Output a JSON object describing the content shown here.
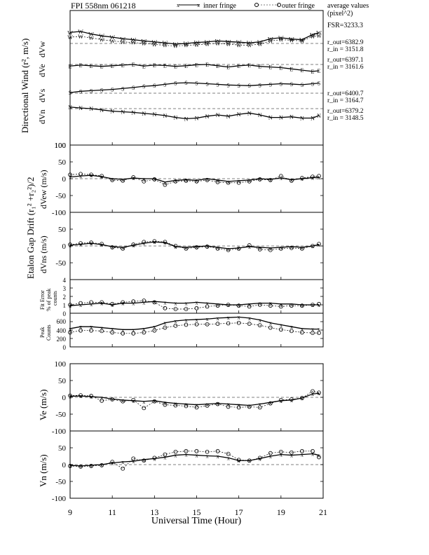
{
  "header": {
    "title": "FPI 558nm 061218",
    "legend_inner": "inner fringe",
    "legend_outer": "outer fringe",
    "avg_line1": "average values",
    "avg_line2": "(pixel^2)",
    "fsr": "FSR=3233.3"
  },
  "ring_labels": [
    [
      "r_out=6382.9",
      "r_in = 3151.8"
    ],
    [
      "r_out=6397.1",
      "r_in = 3161.6"
    ],
    [
      "r_out=6400.7",
      "r_in = 3164.7"
    ],
    [
      "r_out=6379.2",
      "r_in = 3148.5"
    ]
  ],
  "xaxis": {
    "label": "Universal Time (Hour)",
    "ticks": [
      "9",
      "11",
      "13",
      "15",
      "17",
      "19",
      "21"
    ]
  },
  "panel_labels": {
    "directional": "Directional Wind (r², m/s)",
    "dVw": "dVw",
    "dVe": "dVe",
    "dVs": "dVs",
    "dVn": "dVn",
    "drift": "Etalon Gap Drift (r₁² +r₂²)/2",
    "dVew": "dVew (m/s)",
    "dVns": "dVns (m/s)",
    "fit1": "Fit Error",
    "fit2": "% of peak",
    "fit3": "counts",
    "peak1": "Peak",
    "peak2": "Counts",
    "ve": "Ve (m/s)",
    "vn": "Vn (m/s)"
  },
  "tick_labels": {
    "dir": [
      "100"
    ],
    "drift": [
      "100",
      "50",
      "0",
      "-50",
      "-100"
    ],
    "fit": [
      "4",
      "3",
      "2",
      "1",
      "0"
    ],
    "peak": [
      "600",
      "400",
      "200",
      "0"
    ],
    "wind": [
      "100",
      "50",
      "0",
      "-50",
      "-100"
    ]
  },
  "chart_data": [
    {
      "type": "line",
      "name": "Directional wind (Wv, Ev, Sv, Nv)",
      "xlim": [
        9,
        21
      ],
      "series": [
        {
          "name": "W inner",
          "x": [
            9,
            9.5,
            10,
            10.5,
            11,
            11.5,
            12,
            12.5,
            13,
            13.5,
            14,
            14.5,
            15,
            15.5,
            16,
            16.5,
            17,
            17.5,
            18,
            18.5,
            19,
            19.5,
            20,
            20.5,
            20.8
          ],
          "y": [
            20,
            22,
            18,
            12,
            8,
            5,
            3,
            0,
            -3,
            -6,
            -8,
            -6,
            -4,
            -2,
            0,
            -2,
            -5,
            -6,
            -2,
            8,
            12,
            10,
            8,
            22,
            25
          ]
        },
        {
          "name": "W outer",
          "x": [
            9,
            9.5,
            10,
            10.5,
            11,
            11.5,
            12,
            12.5,
            13,
            13.5,
            14,
            14.5,
            15,
            15.5,
            16,
            16.5,
            17,
            17.5,
            18,
            18.5,
            19,
            19.5,
            20,
            20.5,
            20.8
          ],
          "y": [
            35,
            38,
            30,
            24,
            20,
            15,
            12,
            8,
            5,
            2,
            -2,
            0,
            3,
            5,
            8,
            6,
            4,
            2,
            5,
            15,
            18,
            14,
            12,
            28,
            34
          ]
        },
        {
          "name": "E inner",
          "x": [
            9,
            9.5,
            10,
            10.5,
            11,
            11.5,
            12,
            12.5,
            13,
            13.5,
            14,
            14.5,
            15,
            15.5,
            16,
            16.5,
            17,
            17.5,
            18,
            18.5,
            19,
            19.5,
            20,
            20.5,
            20.8
          ],
          "y": [
            -5,
            -2,
            -4,
            -6,
            -4,
            -2,
            0,
            -5,
            -2,
            -3,
            -6,
            -4,
            -1,
            0,
            -4,
            -8,
            -4,
            -2,
            -6,
            -8,
            -10,
            -14,
            -18,
            -22,
            -20
          ]
        },
        {
          "name": "S",
          "x": [
            9,
            9.5,
            10,
            10.5,
            11,
            11.5,
            12,
            12.5,
            13,
            13.5,
            14,
            14.5,
            15,
            15.5,
            16,
            16.5,
            17,
            17.5,
            18,
            18.5,
            19,
            19.5,
            20,
            20.5,
            20.8
          ],
          "y": [
            2,
            6,
            8,
            10,
            12,
            15,
            18,
            22,
            24,
            28,
            32,
            33,
            32,
            30,
            28,
            26,
            25,
            24,
            26,
            28,
            30,
            29,
            27,
            30,
            32
          ]
        },
        {
          "name": "N",
          "x": [
            9,
            9.5,
            10,
            10.5,
            11,
            11.5,
            12,
            12.5,
            13,
            13.5,
            14,
            14.5,
            15,
            15.5,
            16,
            16.5,
            17,
            17.5,
            18,
            18.5,
            19,
            19.5,
            20,
            20.5,
            20.8
          ],
          "y": [
            5,
            2,
            0,
            -4,
            -8,
            -10,
            -12,
            -15,
            -18,
            -22,
            -28,
            -32,
            -30,
            -24,
            -20,
            -24,
            -18,
            -14,
            -20,
            -28,
            -28,
            -26,
            -30,
            -30,
            -22
          ]
        }
      ]
    },
    {
      "type": "line",
      "name": "dVew",
      "xlim": [
        9,
        21
      ],
      "ylim": [
        -100,
        100
      ],
      "series": [
        {
          "name": "inner fringe",
          "x": [
            9,
            9.5,
            10,
            10.5,
            11,
            11.5,
            12,
            12.5,
            13,
            13.5,
            14,
            14.5,
            15,
            15.5,
            16,
            16.5,
            17,
            17.5,
            18,
            18.5,
            19,
            19.5,
            20,
            20.5,
            20.8
          ],
          "y": [
            5,
            8,
            10,
            6,
            0,
            -2,
            2,
            0,
            0,
            -10,
            -5,
            -3,
            -5,
            0,
            -4,
            -8,
            -6,
            -4,
            0,
            -2,
            2,
            -3,
            0,
            3,
            4
          ]
        },
        {
          "name": "outer fringe",
          "x": [
            9,
            9.5,
            10,
            10.5,
            11,
            11.5,
            12,
            12.5,
            13,
            13.5,
            14,
            14.5,
            15,
            15.5,
            16,
            16.5,
            17,
            17.5,
            18,
            18.5,
            19,
            19.5,
            20,
            20.5,
            20.8
          ],
          "y": [
            12,
            14,
            12,
            8,
            -4,
            -6,
            4,
            -8,
            -2,
            -18,
            -8,
            -6,
            -8,
            -4,
            -10,
            -12,
            -12,
            -8,
            -2,
            -4,
            8,
            -6,
            2,
            6,
            8
          ]
        }
      ]
    },
    {
      "type": "line",
      "name": "dVns",
      "xlim": [
        9,
        21
      ],
      "ylim": [
        -100,
        100
      ],
      "series": [
        {
          "name": "inner fringe",
          "x": [
            9,
            9.5,
            10,
            10.5,
            11,
            11.5,
            12,
            12.5,
            13,
            13.5,
            14,
            14.5,
            15,
            15.5,
            16,
            16.5,
            17,
            17.5,
            18,
            18.5,
            19,
            19.5,
            20,
            20.5,
            20.8
          ],
          "y": [
            2,
            5,
            8,
            4,
            -2,
            -4,
            2,
            8,
            12,
            10,
            -2,
            -4,
            -2,
            0,
            -4,
            -8,
            -6,
            -2,
            -4,
            -6,
            -4,
            -2,
            -4,
            0,
            4
          ]
        },
        {
          "name": "outer fringe",
          "x": [
            9,
            9.5,
            10,
            10.5,
            11,
            11.5,
            12,
            12.5,
            13,
            13.5,
            14,
            14.5,
            15,
            15.5,
            16,
            16.5,
            17,
            17.5,
            18,
            18.5,
            19,
            19.5,
            20,
            20.5,
            20.8
          ],
          "y": [
            4,
            8,
            10,
            6,
            -4,
            -8,
            4,
            12,
            14,
            12,
            0,
            -8,
            -4,
            -2,
            -8,
            -12,
            -8,
            2,
            -10,
            -12,
            -8,
            -6,
            -8,
            0,
            6
          ]
        }
      ]
    },
    {
      "type": "line",
      "name": "Fit Error % of peak counts",
      "xlim": [
        9,
        21
      ],
      "ylim": [
        0,
        4
      ],
      "series": [
        {
          "name": "inner fringe",
          "x": [
            9,
            9.5,
            10,
            10.5,
            11,
            11.5,
            12,
            12.5,
            13,
            13.5,
            14,
            14.5,
            15,
            15.5,
            16,
            16.5,
            17,
            17.5,
            18,
            18.5,
            19,
            19.5,
            20,
            20.5,
            20.8
          ],
          "y": [
            0.9,
            1.0,
            1.1,
            1.2,
            1.0,
            1.2,
            1.2,
            1.3,
            1.4,
            1.3,
            1.2,
            1.2,
            1.3,
            1.2,
            1.1,
            1.0,
            1.0,
            1.1,
            1.2,
            1.2,
            1.1,
            1.1,
            1.0,
            1.0,
            1.0
          ]
        },
        {
          "name": "outer fringe",
          "x": [
            9,
            9.5,
            10,
            10.5,
            11,
            11.5,
            12,
            12.5,
            13,
            13.5,
            14,
            14.5,
            15,
            15.5,
            16,
            16.5,
            17,
            17.5,
            18,
            18.5,
            19,
            19.5,
            20,
            20.5,
            20.8
          ],
          "y": [
            1.0,
            1.2,
            1.3,
            1.3,
            1.1,
            1.3,
            1.4,
            1.5,
            1.3,
            0.6,
            0.5,
            0.5,
            0.6,
            0.8,
            0.9,
            1.0,
            0.9,
            0.8,
            1.0,
            0.9,
            0.8,
            0.9,
            0.9,
            1.0,
            1.1
          ]
        }
      ]
    },
    {
      "type": "line",
      "name": "Peak Counts",
      "xlim": [
        9,
        21
      ],
      "ylim": [
        0,
        700
      ],
      "series": [
        {
          "name": "inner fringe",
          "x": [
            9,
            9.5,
            10,
            10.5,
            11,
            11.5,
            12,
            12.5,
            13,
            13.5,
            14,
            14.5,
            15,
            15.5,
            16,
            16.5,
            17,
            17.5,
            18,
            18.5,
            19,
            19.5,
            20,
            20.5,
            20.8
          ],
          "y": [
            380,
            420,
            420,
            400,
            380,
            360,
            360,
            380,
            420,
            500,
            540,
            560,
            570,
            580,
            600,
            610,
            620,
            600,
            560,
            500,
            460,
            420,
            380,
            370,
            370
          ]
        },
        {
          "name": "outer fringe",
          "x": [
            9,
            9.5,
            10,
            10.5,
            11,
            11.5,
            12,
            12.5,
            13,
            13.5,
            14,
            14.5,
            15,
            15.5,
            16,
            16.5,
            17,
            17.5,
            18,
            18.5,
            19,
            19.5,
            20,
            20.5,
            20.8
          ],
          "y": [
            300,
            340,
            340,
            330,
            300,
            280,
            280,
            300,
            340,
            400,
            440,
            460,
            470,
            470,
            480,
            490,
            500,
            480,
            450,
            400,
            360,
            330,
            300,
            290,
            290
          ]
        }
      ]
    },
    {
      "type": "line",
      "name": "Ve",
      "xlim": [
        9,
        21
      ],
      "ylim": [
        -100,
        100
      ],
      "series": [
        {
          "name": "inner fringe",
          "x": [
            9,
            9.5,
            10,
            10.5,
            11,
            11.5,
            12,
            12.5,
            13,
            13.5,
            14,
            14.5,
            15,
            15.5,
            16,
            16.5,
            17,
            17.5,
            18,
            18.5,
            19,
            19.5,
            20,
            20.5,
            20.8
          ],
          "y": [
            3,
            4,
            2,
            0,
            -5,
            -8,
            -10,
            -12,
            -10,
            -15,
            -18,
            -20,
            -22,
            -20,
            -18,
            -20,
            -22,
            -24,
            -20,
            -15,
            -10,
            -8,
            -2,
            10,
            12
          ]
        },
        {
          "name": "outer fringe",
          "x": [
            9,
            9.5,
            10,
            10.5,
            11,
            11.5,
            12,
            12.5,
            13,
            13.5,
            14,
            14.5,
            15,
            15.5,
            16,
            16.5,
            17,
            17.5,
            18,
            18.5,
            19,
            19.5,
            20,
            20.5,
            20.8
          ],
          "y": [
            5,
            6,
            4,
            -10,
            -6,
            -12,
            -8,
            -32,
            -12,
            -22,
            -24,
            -26,
            -30,
            -25,
            -20,
            -28,
            -30,
            -28,
            -30,
            -18,
            -8,
            -6,
            -2,
            18,
            14
          ]
        }
      ]
    },
    {
      "type": "line",
      "name": "Vn",
      "xlim": [
        9,
        21
      ],
      "ylim": [
        -100,
        100
      ],
      "series": [
        {
          "name": "inner fringe",
          "x": [
            9,
            9.5,
            10,
            10.5,
            11,
            11.5,
            12,
            12.5,
            13,
            13.5,
            14,
            14.5,
            15,
            15.5,
            16,
            16.5,
            17,
            17.5,
            18,
            18.5,
            19,
            19.5,
            20,
            20.5,
            20.8
          ],
          "y": [
            -2,
            -4,
            -2,
            0,
            5,
            8,
            10,
            15,
            18,
            22,
            28,
            30,
            28,
            26,
            25,
            20,
            12,
            12,
            18,
            25,
            30,
            28,
            30,
            32,
            28
          ]
        },
        {
          "name": "outer fringe",
          "x": [
            9,
            9.5,
            10,
            10.5,
            11,
            11.5,
            12,
            12.5,
            13,
            13.5,
            14,
            14.5,
            15,
            15.5,
            16,
            16.5,
            17,
            17.5,
            18,
            18.5,
            19,
            19.5,
            20,
            20.5,
            20.8
          ],
          "y": [
            -4,
            -6,
            -4,
            -2,
            8,
            -12,
            18,
            12,
            20,
            30,
            38,
            40,
            40,
            38,
            40,
            32,
            14,
            12,
            20,
            34,
            38,
            36,
            40,
            40,
            22
          ]
        }
      ]
    }
  ]
}
